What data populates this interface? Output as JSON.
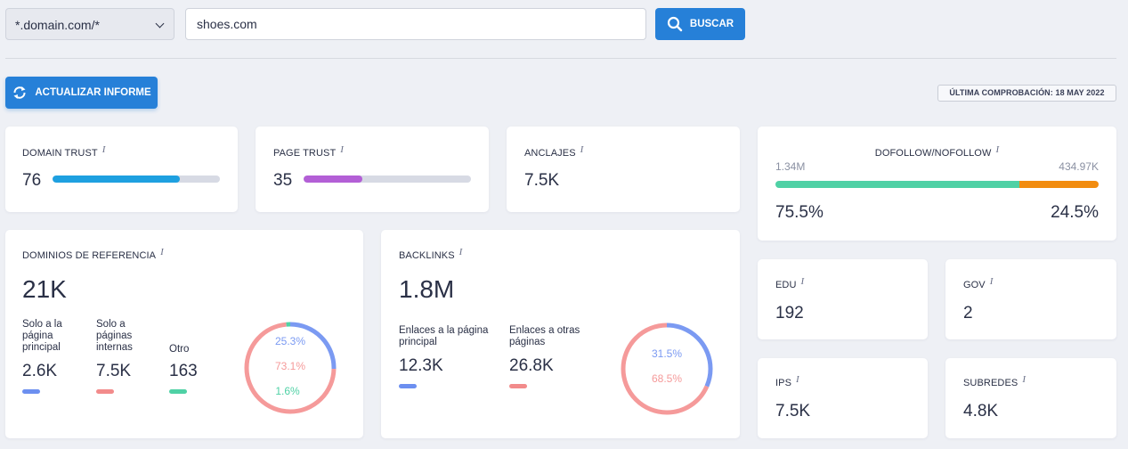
{
  "search": {
    "scope": "*.domain.com/*",
    "query": "shoes.com",
    "button": "BUSCAR"
  },
  "actions": {
    "update": "ACTUALIZAR INFORME",
    "last_check": "ÚLTIMA COMPROBACIÓN: 18 MAY 2022"
  },
  "info_glyph": "i",
  "domain_trust": {
    "label": "DOMAIN TRUST",
    "value": "76",
    "fill": 0.76,
    "color": "#1ea0e0"
  },
  "page_trust": {
    "label": "PAGE TRUST",
    "value": "35",
    "fill": 0.35,
    "color": "#b35fd6"
  },
  "anclajes": {
    "label": "ANCLAJES",
    "value": "7.5K"
  },
  "dofollow": {
    "label": "DOFOLLOW/NOFOLLOW",
    "left_count": "1.34M",
    "right_count": "434.97K",
    "left_pct": "75.5%",
    "right_pct": "24.5%",
    "left_fraction": 0.755,
    "left_color": "#4fd1a5",
    "right_color": "#f28c0f"
  },
  "referring_domains": {
    "label": "DOMINIOS DE REFERENCIA",
    "total": "21K",
    "items": [
      {
        "label": "Solo a la página principal",
        "value": "2.6K",
        "color": "#6c8ff0"
      },
      {
        "label": "Solo a páginas internas",
        "value": "7.5K",
        "color": "#f28b8b"
      },
      {
        "label": "Otro",
        "value": "163",
        "color": "#4fd1a5"
      }
    ],
    "donut": [
      {
        "pct": "25.3%",
        "fraction": 0.253,
        "color": "#7b9af2"
      },
      {
        "pct": "73.1%",
        "fraction": 0.731,
        "color": "#f59a9a"
      },
      {
        "pct": "1.6%",
        "fraction": 0.016,
        "color": "#4fd1a5"
      }
    ]
  },
  "backlinks": {
    "label": "BACKLINKS",
    "total": "1.8M",
    "items": [
      {
        "label": "Enlaces a la página principal",
        "value": "12.3K",
        "color": "#6c8ff0"
      },
      {
        "label": "Enlaces a otras páginas",
        "value": "26.8K",
        "color": "#f28b8b"
      }
    ],
    "donut": [
      {
        "pct": "31.5%",
        "fraction": 0.315,
        "color": "#7b9af2"
      },
      {
        "pct": "68.5%",
        "fraction": 0.685,
        "color": "#f59a9a"
      }
    ]
  },
  "edu": {
    "label": "EDU",
    "value": "192"
  },
  "gov": {
    "label": "GOV",
    "value": "2"
  },
  "ips": {
    "label": "IPS",
    "value": "7.5K"
  },
  "subredes": {
    "label": "SUBREDES",
    "value": "4.8K"
  }
}
